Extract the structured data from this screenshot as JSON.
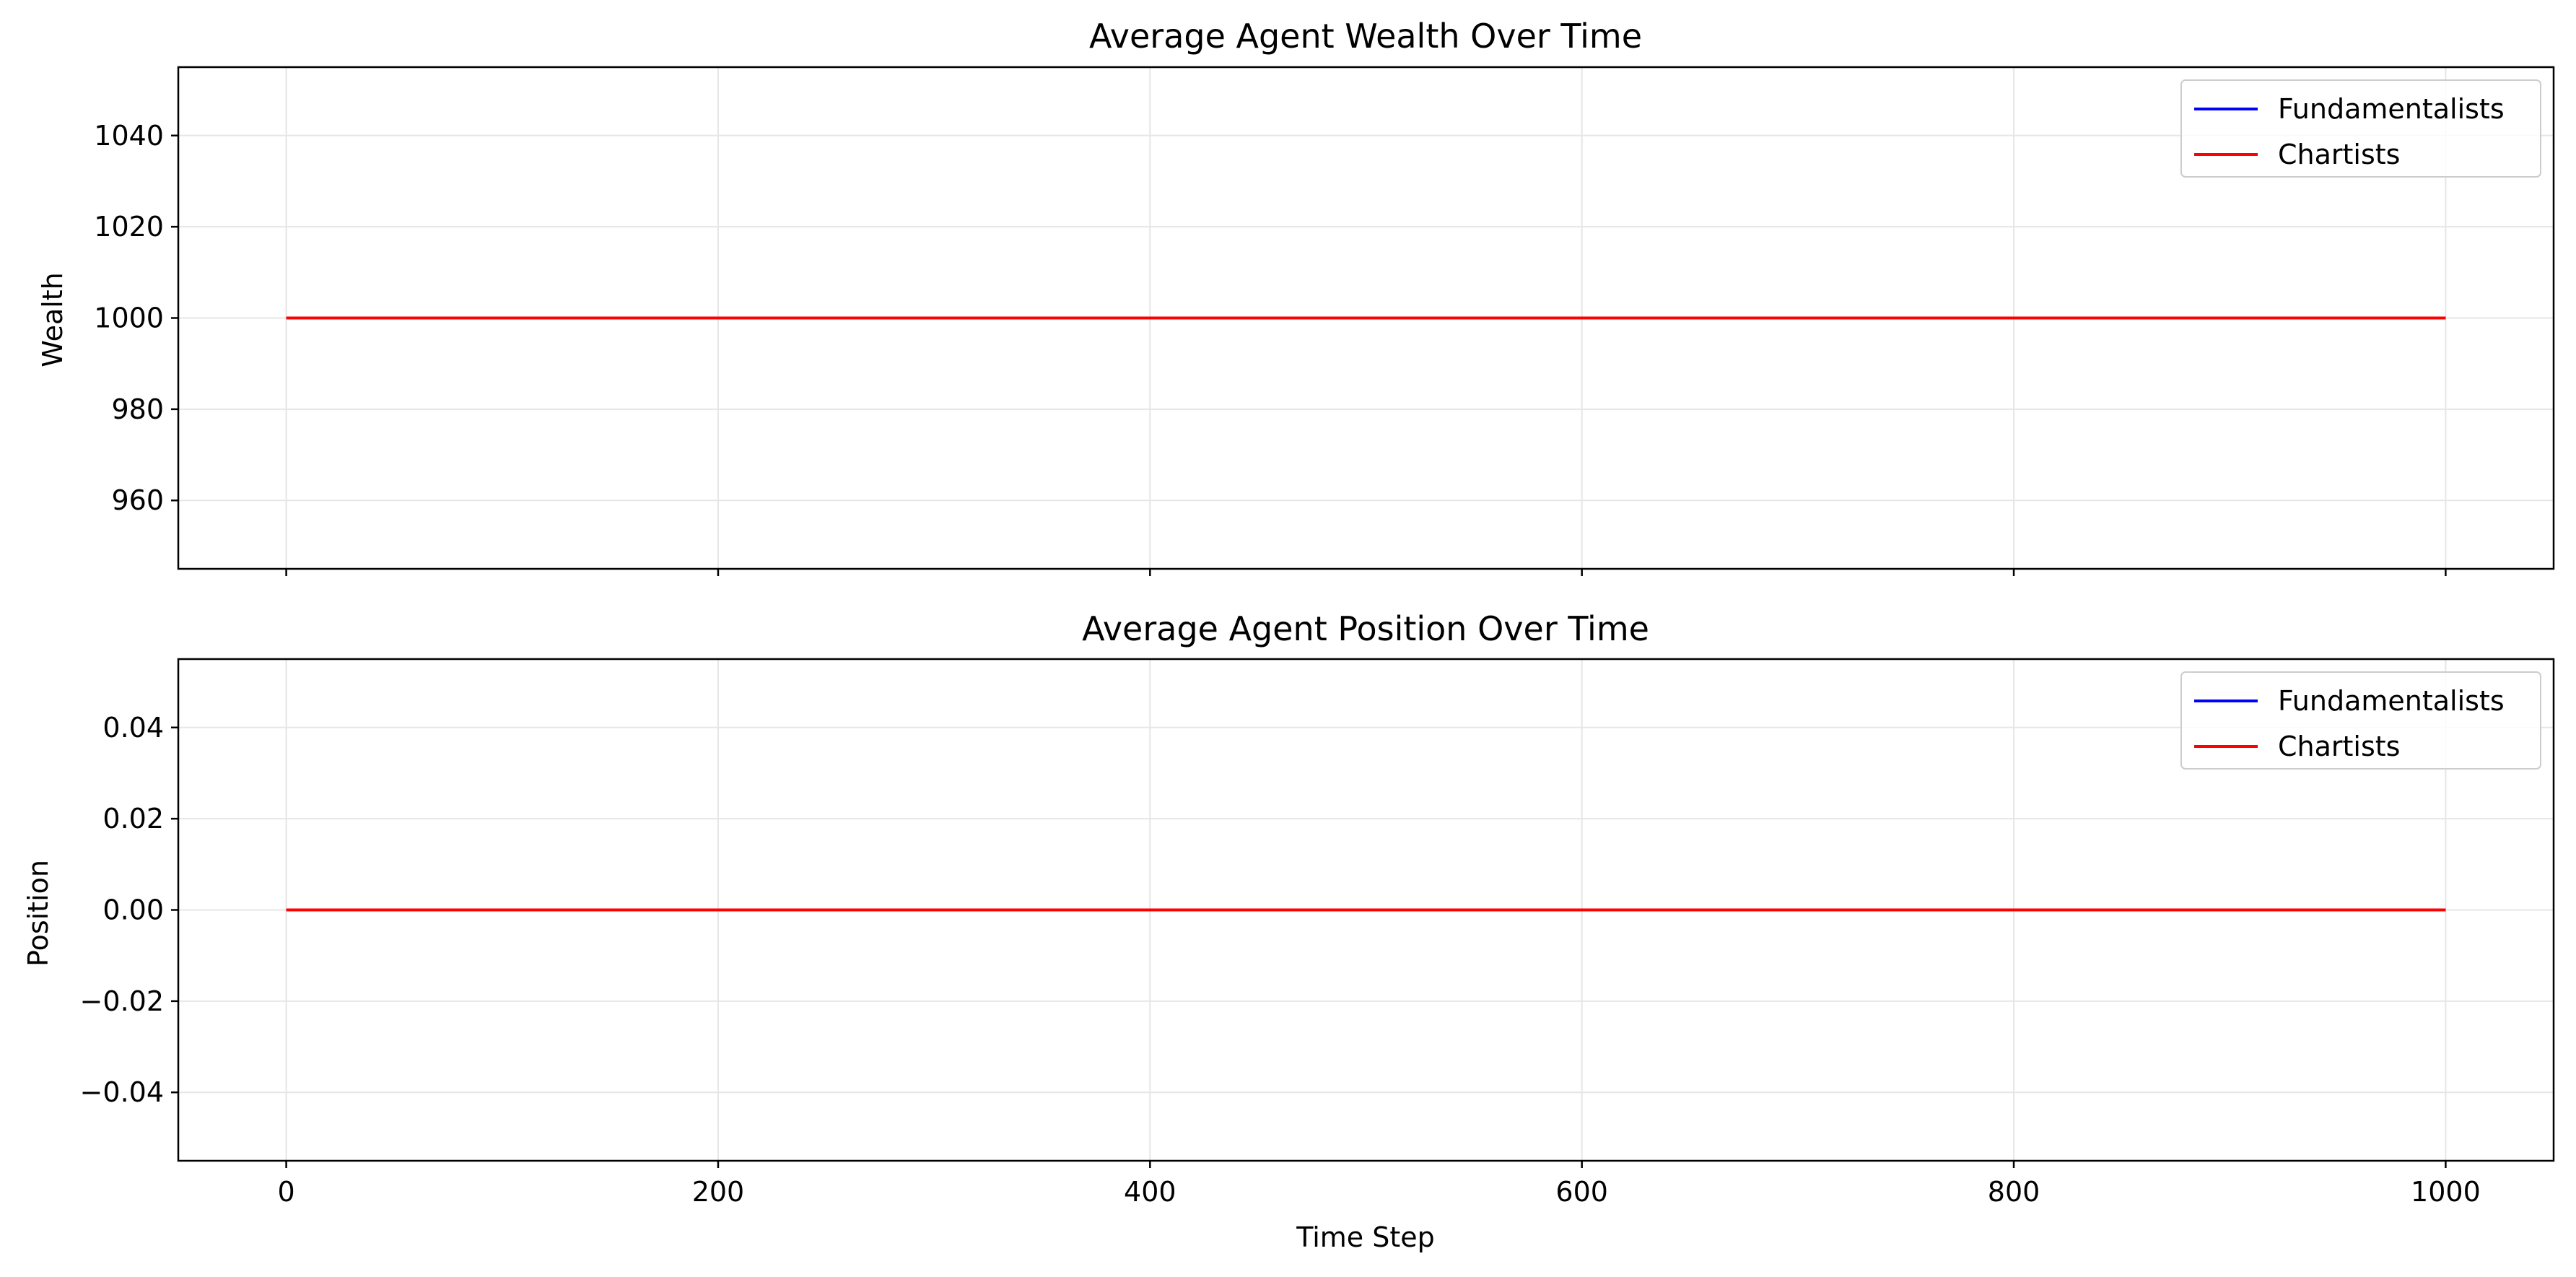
{
  "colors": {
    "fundamentalists": "#0000ff",
    "chartists": "#ff0000",
    "grid": "#e6e6e6",
    "axes": "#000000"
  },
  "chart_data": [
    {
      "type": "line",
      "title": "Average Agent Wealth Over Time",
      "xlabel": "",
      "ylabel": "Wealth",
      "xlim": [
        -50,
        1050
      ],
      "ylim": [
        945,
        1055
      ],
      "xticks": [
        0,
        200,
        400,
        600,
        800,
        1000
      ],
      "xtick_labels": [
        "",
        "",
        "",
        "",
        "",
        ""
      ],
      "yticks": [
        960,
        980,
        1000,
        1020,
        1040
      ],
      "ytick_labels": [
        "960",
        "980",
        "1000",
        "1020",
        "1040"
      ],
      "grid": true,
      "legend": "top-right",
      "series": [
        {
          "name": "Fundamentalists",
          "color": "#0000ff",
          "x": [
            0,
            1000
          ],
          "y": [
            1000,
            1000
          ]
        },
        {
          "name": "Chartists",
          "color": "#ff0000",
          "x": [
            0,
            1000
          ],
          "y": [
            1000,
            1000
          ]
        }
      ]
    },
    {
      "type": "line",
      "title": "Average Agent Position Over Time",
      "xlabel": "Time Step",
      "ylabel": "Position",
      "xlim": [
        -50,
        1050
      ],
      "ylim": [
        -0.055,
        0.055
      ],
      "xticks": [
        0,
        200,
        400,
        600,
        800,
        1000
      ],
      "xtick_labels": [
        "0",
        "200",
        "400",
        "600",
        "800",
        "1000"
      ],
      "yticks": [
        -0.04,
        -0.02,
        0.0,
        0.02,
        0.04
      ],
      "ytick_labels": [
        "−0.04",
        "−0.02",
        "0.00",
        "0.02",
        "0.04"
      ],
      "grid": true,
      "legend": "top-right",
      "series": [
        {
          "name": "Fundamentalists",
          "color": "#0000ff",
          "x": [
            0,
            1000
          ],
          "y": [
            0,
            0
          ]
        },
        {
          "name": "Chartists",
          "color": "#ff0000",
          "x": [
            0,
            1000
          ],
          "y": [
            0,
            0
          ]
        }
      ]
    }
  ]
}
